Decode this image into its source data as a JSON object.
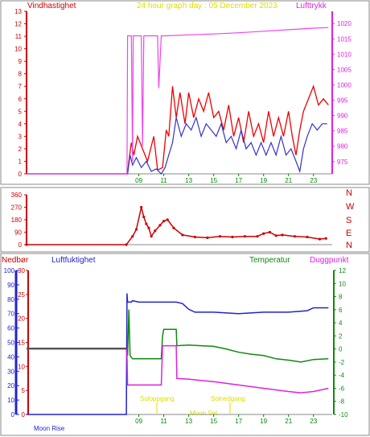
{
  "header": {
    "left_label": "Vindhastighet",
    "title": "24 hour graph day : 05 December 2023",
    "right_label": "Lufttrykk"
  },
  "panel2": {
    "compass": [
      "N",
      "W",
      "S",
      "E",
      "N"
    ]
  },
  "panel3": {
    "labels": {
      "rain": "Nedbør",
      "humidity": "Luftfuktighet",
      "temperature": "Temperatur",
      "dewpoint": "Duggpunkt"
    },
    "events": [
      "Soloppgang",
      "Solnedgang",
      "Moon Rise",
      "Moon Set"
    ]
  },
  "colors": {
    "wind": "#ee0000",
    "wind_avg": "#3333cc",
    "pressure": "#ee44ee",
    "temperature": "#118811",
    "humidity": "#2222cc",
    "rain_axis": "#cc0000",
    "title": "#dddd00",
    "time_axis": "#008800"
  },
  "chart_data": [
    {
      "type": "line",
      "xlabel": "",
      "xticks": [
        9,
        11,
        13,
        15,
        17,
        19,
        21,
        23
      ],
      "ylim": [
        0,
        13
      ],
      "yticks": [
        0,
        1,
        2,
        3,
        4,
        5,
        6,
        7,
        8,
        9,
        10,
        11,
        12,
        13
      ],
      "y2lim": [
        971,
        1024
      ],
      "y2ticks": [
        975,
        980,
        985,
        990,
        995,
        1000,
        1005,
        1010,
        1015,
        1020
      ],
      "series": [
        {
          "name": "Vindhastighet",
          "axis": "left",
          "color": "#ee0000",
          "x": [
            0,
            8.1,
            8.2,
            8.4,
            8.6,
            8.9,
            9.3,
            9.7,
            10.2,
            10.5,
            10.9,
            11.2,
            11.4,
            11.7,
            12.0,
            12.3,
            12.7,
            13.0,
            13.4,
            13.8,
            14.2,
            14.6,
            15.0,
            15.4,
            15.8,
            16.2,
            16.6,
            17.0,
            17.4,
            17.8,
            18.2,
            18.6,
            19.0,
            19.4,
            19.8,
            20.2,
            20.6,
            21.0,
            21.3,
            21.6,
            21.9,
            22.2,
            22.6,
            23.0,
            23.4,
            23.8,
            24.2
          ],
          "y": [
            0,
            0,
            1,
            2.5,
            1.5,
            3,
            2,
            1,
            3,
            0.3,
            0.5,
            3.5,
            3,
            7,
            4.5,
            6.5,
            4,
            6.5,
            4.5,
            6,
            5,
            6.5,
            4.5,
            5,
            3.5,
            5.5,
            3,
            4.5,
            2.5,
            5,
            3,
            4,
            2.5,
            5,
            3,
            4.5,
            3,
            5,
            3,
            1.5,
            3.5,
            5,
            6,
            7,
            5.5,
            6,
            5.5
          ]
        },
        {
          "name": "",
          "axis": "left",
          "color": "#3333cc",
          "x": [
            0,
            8.1,
            8.3,
            8.5,
            8.8,
            9.2,
            9.6,
            10.0,
            10.4,
            10.8,
            11.1,
            11.4,
            11.7,
            12.0,
            12.4,
            12.8,
            13.2,
            13.6,
            14.0,
            14.4,
            14.8,
            15.2,
            15.6,
            16.0,
            16.4,
            16.8,
            17.2,
            17.6,
            18.0,
            18.4,
            18.8,
            19.2,
            19.6,
            20.0,
            20.4,
            20.8,
            21.2,
            21.6,
            21.9,
            22.2,
            22.5,
            22.9,
            23.3,
            23.7,
            24.1
          ],
          "y": [
            0,
            0,
            1.5,
            0.7,
            1.3,
            0.5,
            1,
            0.2,
            0.4,
            0,
            0.5,
            1.5,
            2.5,
            4.5,
            3,
            4,
            3.5,
            4.5,
            3,
            4,
            3.5,
            3,
            4,
            2.5,
            3,
            2,
            3.5,
            2,
            2.5,
            1.5,
            2.5,
            1.5,
            2.5,
            1.5,
            3,
            1.5,
            2,
            1,
            0.2,
            2,
            3,
            4,
            3.5,
            4,
            4
          ]
        },
        {
          "name": "Lufttrykk",
          "axis": "right",
          "color": "#ee44ee",
          "x": [
            0,
            8.05,
            8.1,
            8.4,
            8.5,
            8.55,
            9.0,
            9.2,
            9.3,
            9.4,
            10.0,
            10.4,
            10.5,
            10.6,
            10.8,
            11.0,
            11.2,
            13,
            15,
            17,
            19,
            21,
            23,
            24.2
          ],
          "y": [
            971,
            971,
            1016,
            1016,
            975,
            1016,
            1016,
            1016,
            980,
            1016,
            1016,
            1016,
            1016,
            999,
            1016,
            1016,
            1016,
            1016.3,
            1016.6,
            1017,
            1017.5,
            1018,
            1018.5,
            1018.7
          ]
        }
      ]
    },
    {
      "type": "scatter",
      "xticks": [
        9,
        11,
        13,
        15,
        17,
        19,
        21,
        23
      ],
      "ylim": [
        0,
        360
      ],
      "yticks": [
        0,
        90,
        180,
        270,
        360
      ],
      "series": [
        {
          "name": "",
          "color": "#cc0000",
          "x": [
            0,
            8.0,
            8.5,
            8.8,
            9.2,
            9.4,
            9.6,
            9.8,
            10.0,
            10.3,
            10.7,
            11.0,
            11.3,
            11.8,
            12.5,
            13.5,
            14.5,
            15.5,
            16.5,
            17.5,
            18.5,
            19.0,
            19.5,
            20.0,
            20.5,
            21.5,
            22.5,
            23.5,
            24.0
          ],
          "y": [
            0,
            0,
            60,
            110,
            270,
            200,
            150,
            120,
            60,
            100,
            140,
            170,
            180,
            120,
            70,
            55,
            50,
            60,
            55,
            60,
            60,
            80,
            90,
            65,
            70,
            60,
            55,
            40,
            45
          ]
        }
      ]
    },
    {
      "type": "line",
      "xticks": [
        9,
        11,
        13,
        15,
        17,
        19,
        21,
        23
      ],
      "y_rain": [
        0,
        30
      ],
      "y_rain_ticks": [
        0,
        5,
        10,
        15,
        20,
        25,
        30
      ],
      "y_humidity": [
        0,
        100
      ],
      "y_humidity_ticks": [
        0,
        10,
        20,
        30,
        40,
        50,
        60,
        70,
        80,
        90,
        100
      ],
      "y_temperature": [
        -10,
        12
      ],
      "y_temperature_ticks": [
        -10,
        -8,
        -6,
        -4,
        -2,
        0,
        2,
        4,
        6,
        8,
        10,
        12
      ],
      "series": [
        {
          "name": "Luftfuktighet",
          "axis": "humidity",
          "color": "#2222cc",
          "x": [
            0,
            8.0,
            8.05,
            8.1,
            8.4,
            8.5,
            9.0,
            9.4,
            10.0,
            11.0,
            11.2,
            12.0,
            12.5,
            13.0,
            13.5,
            15.0,
            17.0,
            19.0,
            21.0,
            22.5,
            23.0,
            24.2
          ],
          "y": [
            0,
            0,
            84,
            78,
            78,
            79,
            78,
            78,
            78,
            78,
            78,
            78,
            77,
            73,
            71,
            71,
            70,
            71,
            71,
            72,
            74,
            74
          ]
        },
        {
          "name": "Temperatur",
          "axis": "temperature",
          "color": "#118811",
          "x": [
            0,
            8.0,
            8.1,
            8.2,
            8.3,
            8.5,
            9.0,
            9.4,
            10.0,
            10.8,
            10.9,
            11.0,
            11.5,
            12.0,
            12.05,
            13.0,
            15.0,
            16.0,
            17.0,
            18.0,
            19.0,
            20.0,
            21.0,
            22.0,
            23.0,
            24.2
          ],
          "y": [
            0,
            0,
            -1,
            6,
            -1,
            -1.5,
            -1.5,
            -1.5,
            -1.5,
            -1.5,
            2,
            3,
            3,
            3,
            0.5,
            0.6,
            0.4,
            0,
            -0.5,
            -0.8,
            -1,
            -1.5,
            -1.7,
            -2,
            -1.6,
            -1.5
          ]
        },
        {
          "name": "Duggpunkt",
          "axis": "temperature",
          "color": "#dd22dd",
          "x": [
            0,
            8.0,
            8.05,
            8.1,
            8.3,
            9.0,
            9.4,
            10.0,
            10.8,
            10.9,
            11.0,
            12.0,
            12.05,
            13.0,
            15.0,
            17.0,
            19.0,
            21.0,
            22.0,
            23.0,
            24.2
          ],
          "y": [
            0,
            0,
            -1,
            -5.5,
            -5.5,
            -5.5,
            -5.5,
            -5.5,
            -5.5,
            0.5,
            0.5,
            0.5,
            -4.5,
            -4.6,
            -5,
            -5.5,
            -6,
            -6.5,
            -6.7,
            -6.5,
            -6
          ]
        },
        {
          "name": "",
          "axis": "humidity",
          "color": "#226622",
          "x": [
            0,
            8.0
          ],
          "y": [
            46,
            46
          ]
        }
      ]
    }
  ]
}
